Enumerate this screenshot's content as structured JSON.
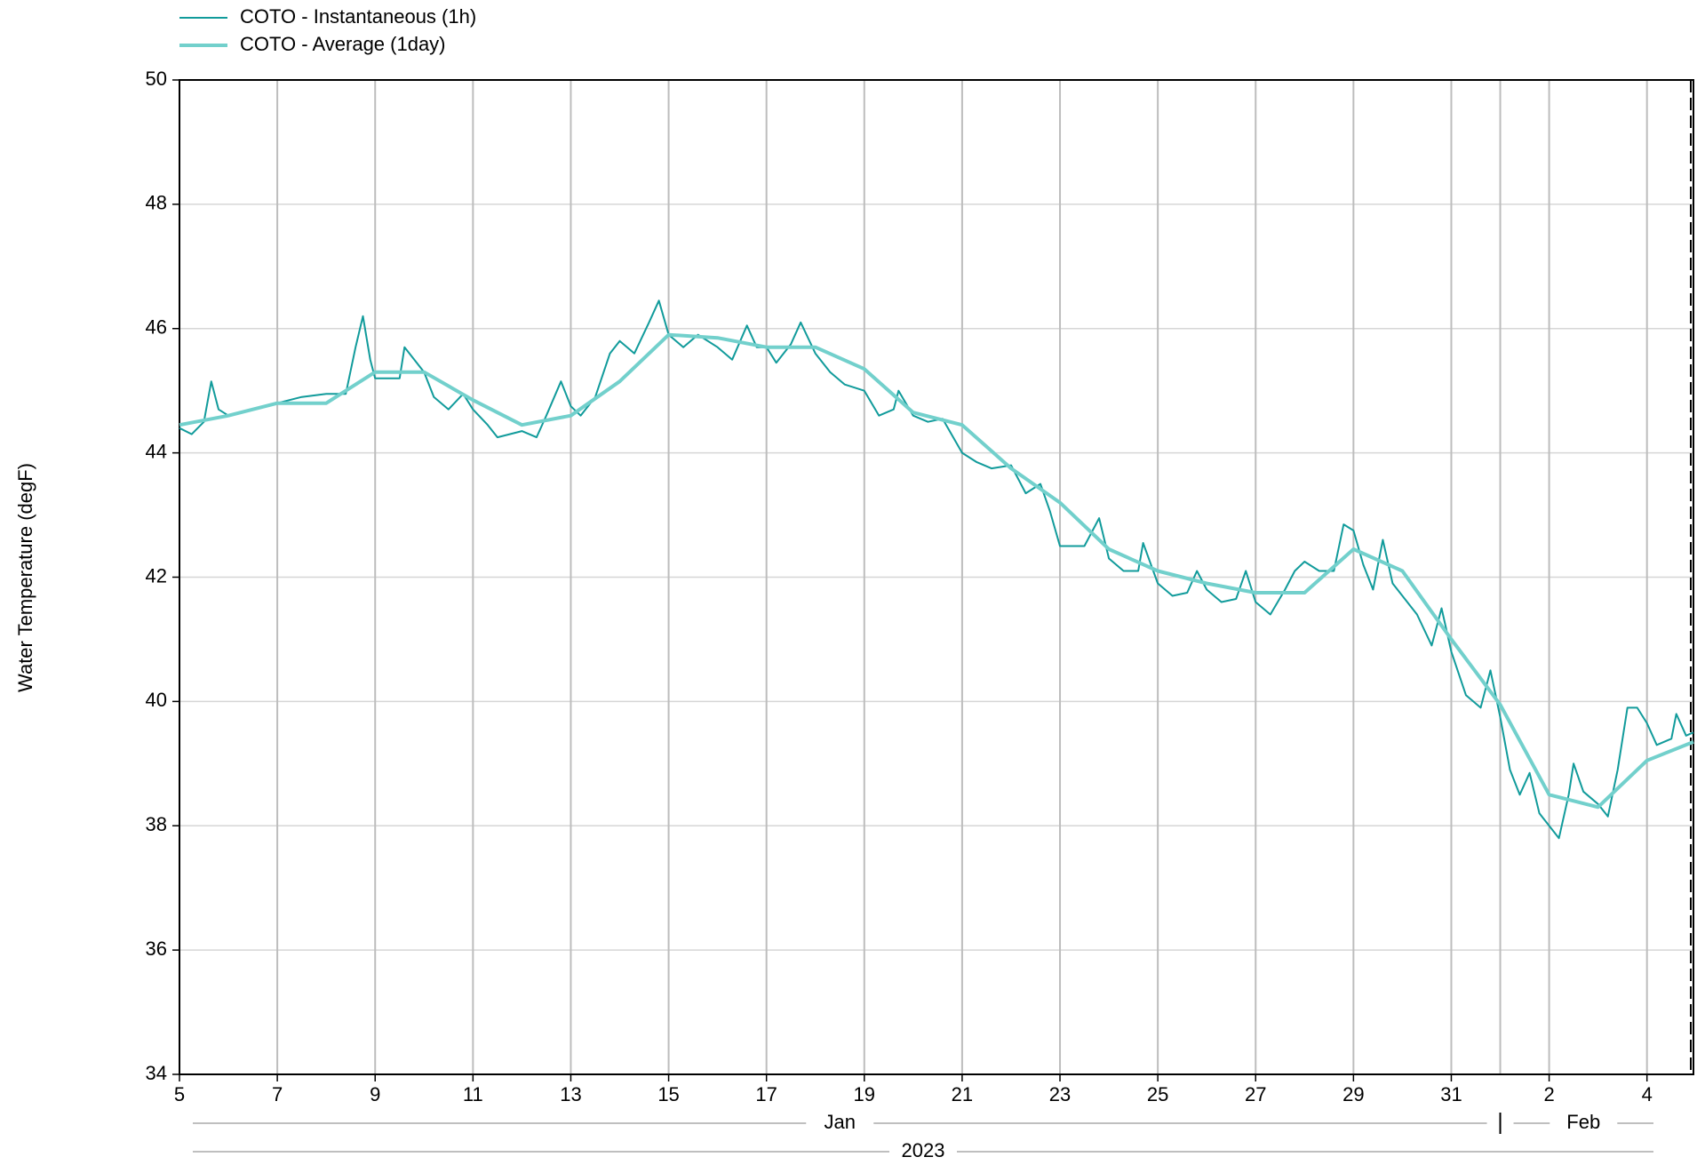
{
  "chart_data": {
    "type": "line",
    "y_label": "Water Temperature (degF)",
    "month_labels": [
      "Jan",
      "Feb"
    ],
    "year_label": "2023",
    "ylim": [
      34,
      50
    ],
    "yticks": [
      34,
      36,
      38,
      40,
      42,
      44,
      46,
      48,
      50
    ],
    "xlim": [
      5,
      35.95
    ],
    "xticks": [
      5,
      7,
      9,
      11,
      13,
      15,
      17,
      19,
      21,
      23,
      25,
      27,
      29,
      31,
      {
        "value": 33,
        "label": "2"
      },
      {
        "value": 35,
        "label": "4"
      }
    ],
    "grid": true,
    "series": [
      {
        "name": "COTO - Instantaneous (1h)",
        "color": "#119b9b",
        "width": 2,
        "x": [
          5.0,
          5.25,
          5.5,
          5.65,
          5.8,
          6.0,
          6.5,
          7.0,
          7.5,
          8.0,
          8.4,
          8.6,
          8.75,
          8.9,
          9.0,
          9.5,
          9.6,
          9.8,
          10.0,
          10.2,
          10.5,
          10.8,
          11.0,
          11.3,
          11.5,
          12.0,
          12.3,
          12.5,
          12.8,
          13.0,
          13.2,
          13.5,
          13.8,
          14.0,
          14.3,
          14.6,
          14.8,
          15.0,
          15.3,
          15.6,
          16.0,
          16.3,
          16.6,
          16.8,
          17.0,
          17.2,
          17.5,
          17.7,
          18.0,
          18.3,
          18.6,
          19.0,
          19.3,
          19.6,
          19.7,
          20.0,
          20.3,
          20.6,
          21.0,
          21.3,
          21.6,
          22.0,
          22.3,
          22.6,
          22.8,
          23.0,
          23.5,
          23.8,
          24.0,
          24.3,
          24.6,
          24.7,
          25.0,
          25.3,
          25.6,
          25.8,
          26.0,
          26.3,
          26.6,
          26.8,
          27.0,
          27.3,
          27.6,
          27.8,
          28.0,
          28.3,
          28.6,
          28.8,
          29.0,
          29.2,
          29.4,
          29.6,
          29.8,
          30.0,
          30.3,
          30.6,
          30.8,
          31.0,
          31.3,
          31.6,
          31.8,
          32.0,
          32.2,
          32.4,
          32.6,
          32.8,
          33.0,
          33.2,
          33.4,
          33.5,
          33.7,
          34.0,
          34.2,
          34.4,
          34.6,
          34.8,
          35.0,
          35.2,
          35.5,
          35.6,
          35.8,
          35.95
        ],
        "values": [
          44.4,
          44.3,
          44.5,
          45.15,
          44.7,
          44.6,
          44.7,
          44.8,
          44.9,
          44.95,
          44.95,
          45.7,
          46.2,
          45.5,
          45.2,
          45.2,
          45.7,
          45.5,
          45.3,
          44.9,
          44.7,
          44.95,
          44.7,
          44.45,
          44.25,
          44.35,
          44.25,
          44.6,
          45.15,
          44.75,
          44.6,
          44.9,
          45.6,
          45.8,
          45.6,
          46.1,
          46.45,
          45.9,
          45.7,
          45.9,
          45.7,
          45.5,
          46.05,
          45.7,
          45.7,
          45.45,
          45.75,
          46.1,
          45.6,
          45.3,
          45.1,
          45.0,
          44.6,
          44.7,
          45.0,
          44.6,
          44.5,
          44.55,
          44.0,
          43.85,
          43.75,
          43.8,
          43.35,
          43.5,
          43.05,
          42.5,
          42.5,
          42.95,
          42.3,
          42.1,
          42.1,
          42.55,
          41.9,
          41.7,
          41.75,
          42.1,
          41.8,
          41.6,
          41.65,
          42.1,
          41.6,
          41.4,
          41.8,
          42.1,
          42.25,
          42.1,
          42.1,
          42.85,
          42.75,
          42.2,
          41.8,
          42.6,
          41.9,
          41.7,
          41.4,
          40.9,
          41.5,
          40.8,
          40.1,
          39.9,
          40.5,
          39.75,
          38.9,
          38.5,
          38.85,
          38.2,
          38.0,
          37.8,
          38.5,
          39.0,
          38.55,
          38.35,
          38.15,
          38.9,
          39.9,
          39.9,
          39.65,
          39.3,
          39.4,
          39.8,
          39.45,
          39.5
        ]
      },
      {
        "name": "COTO - Average (1day)",
        "color": "#72d0cc",
        "width": 4,
        "x": [
          5,
          6,
          7,
          8,
          9,
          10,
          11,
          12,
          13,
          14,
          15,
          16,
          17,
          18,
          19,
          20,
          21,
          22,
          23,
          24,
          25,
          26,
          27,
          28,
          29,
          30,
          31,
          32,
          33,
          34,
          35,
          35.95
        ],
        "values": [
          44.45,
          44.6,
          44.8,
          44.8,
          45.3,
          45.3,
          44.85,
          44.45,
          44.6,
          45.15,
          45.9,
          45.85,
          45.7,
          45.7,
          45.35,
          44.65,
          44.45,
          43.75,
          43.2,
          42.45,
          42.1,
          41.9,
          41.75,
          41.75,
          42.45,
          42.1,
          41.0,
          39.95,
          38.5,
          38.3,
          39.05,
          39.35
        ]
      }
    ]
  }
}
